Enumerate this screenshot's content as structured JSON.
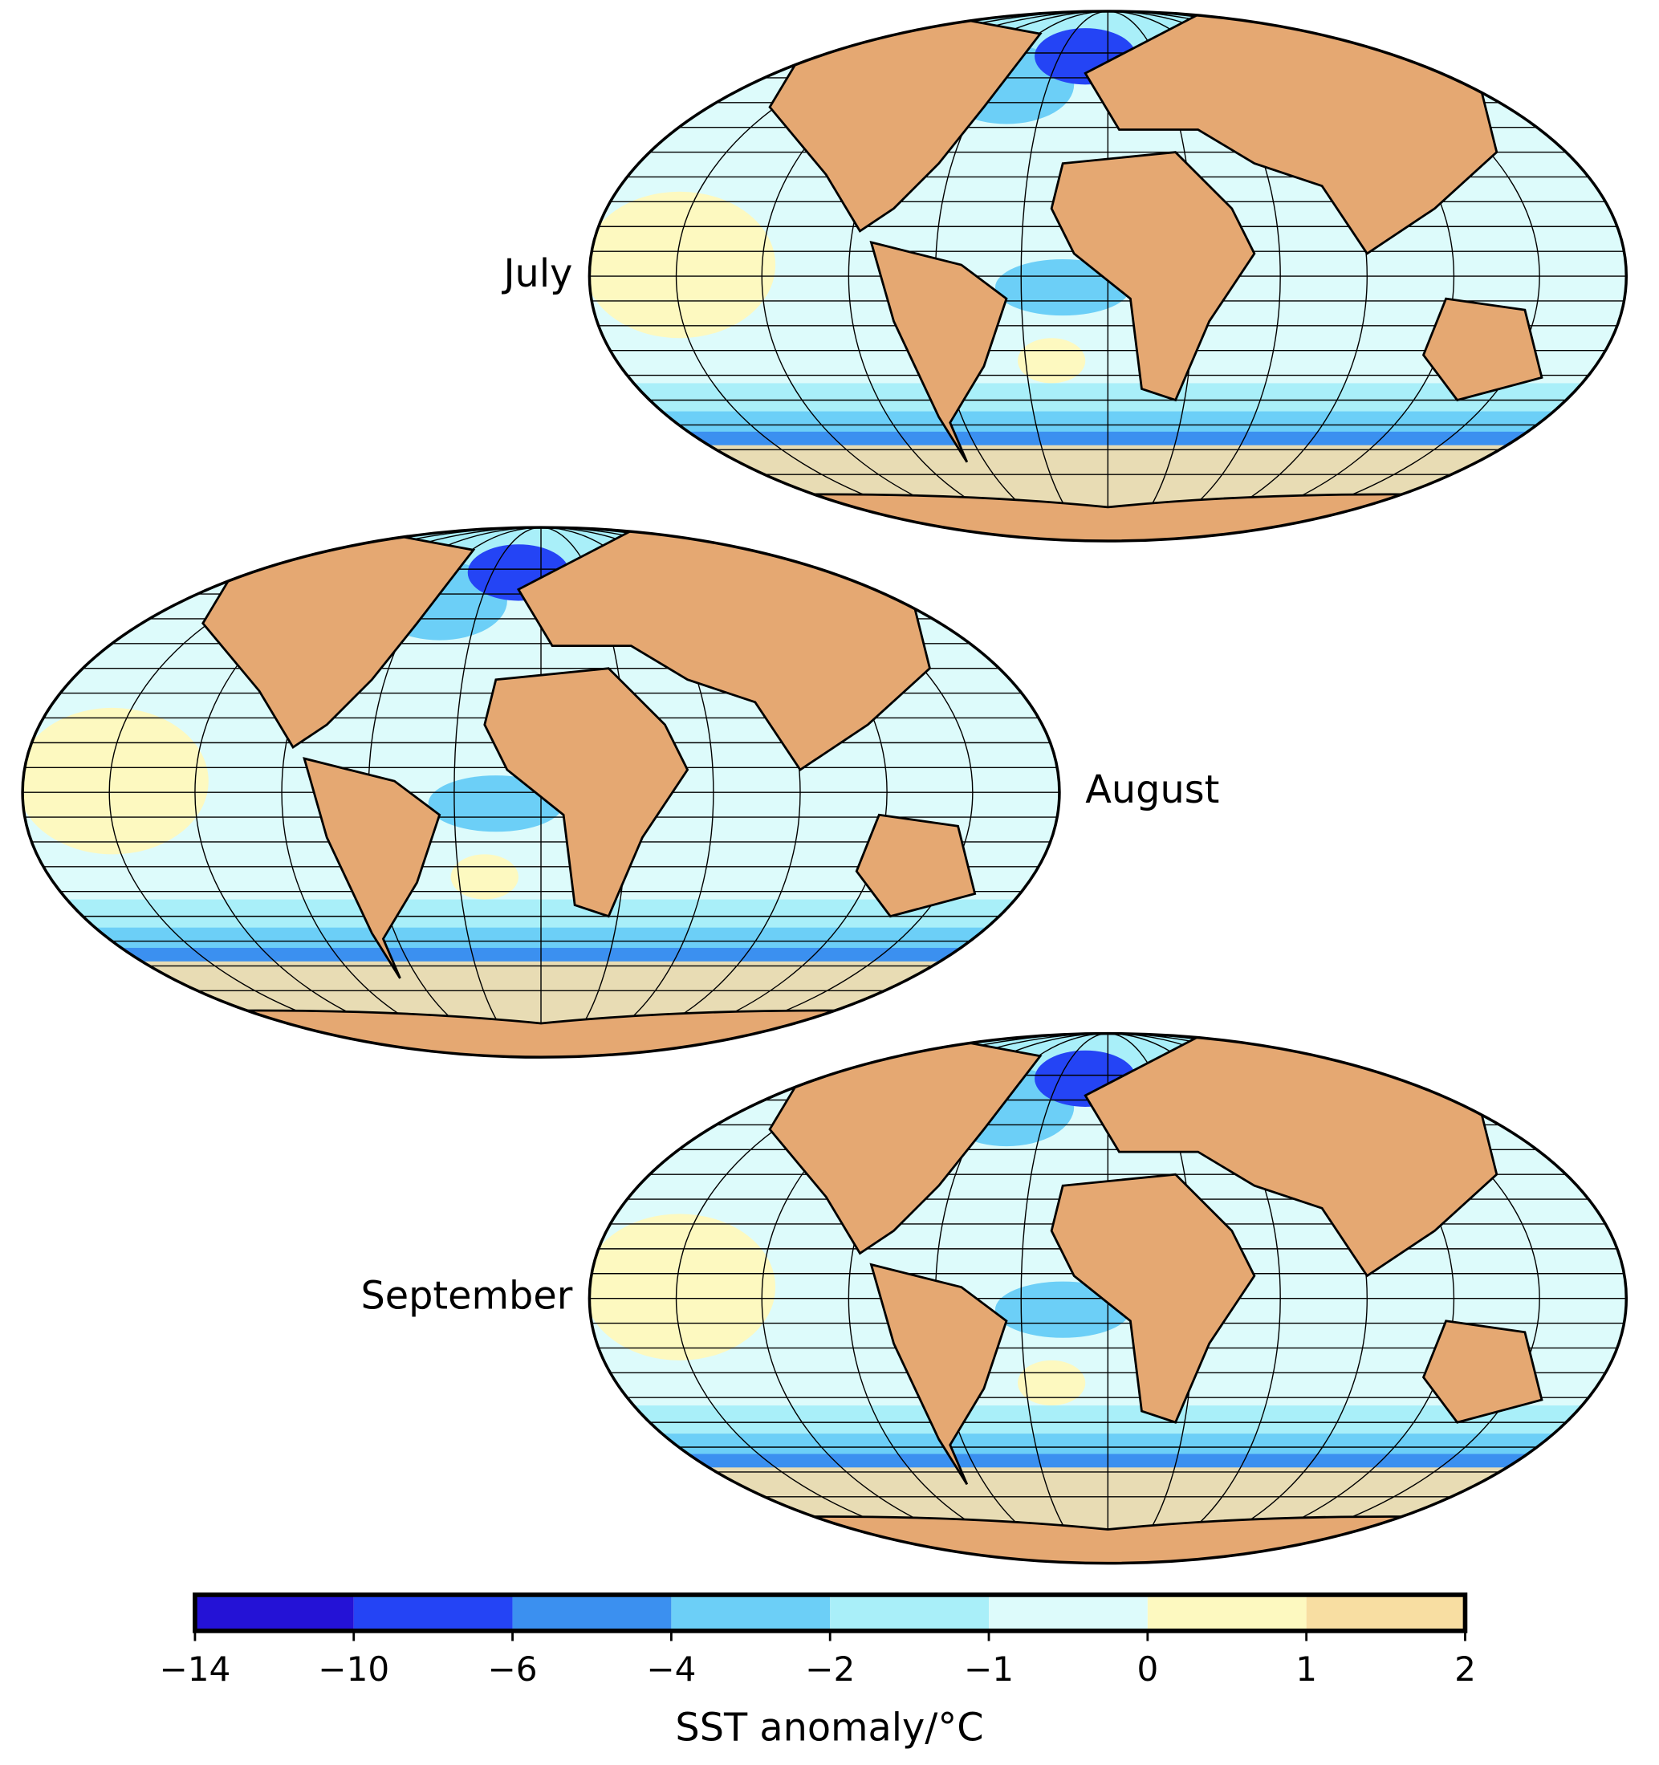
{
  "maps": [
    {
      "label": "July"
    },
    {
      "label": "August"
    },
    {
      "label": "September"
    }
  ],
  "colorbar": {
    "label": "SST anomaly/°C",
    "ticks": [
      {
        "value": -14,
        "label": "−14"
      },
      {
        "value": -10,
        "label": "−10"
      },
      {
        "value": -6,
        "label": "−6"
      },
      {
        "value": -4,
        "label": "−4"
      },
      {
        "value": -2,
        "label": "−2"
      },
      {
        "value": -1,
        "label": "−1"
      },
      0,
      1,
      2
    ],
    "colors": [
      "#2412d6",
      "#2444f5",
      "#3b90f0",
      "#6ccff7",
      "#a9eff9",
      "#ddfbfb",
      "#fdf9c0",
      "#f8dea2"
    ]
  }
}
